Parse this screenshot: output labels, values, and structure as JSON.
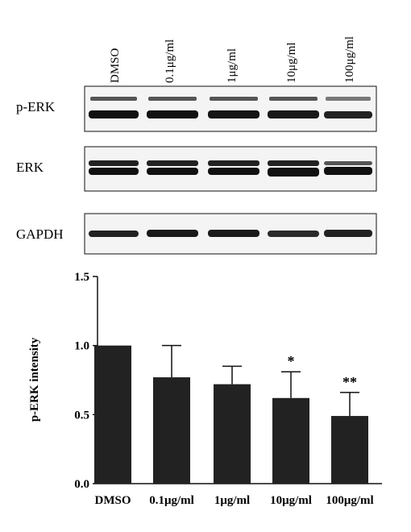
{
  "blot": {
    "lanes": [
      "DMSO",
      "0.1μg/ml",
      "1μg/ml",
      "10μg/ml",
      "100μg/ml"
    ],
    "panels": [
      {
        "label": "p-ERK"
      },
      {
        "label": "ERK"
      },
      {
        "label": "GAPDH"
      }
    ]
  },
  "chart_data": {
    "type": "bar",
    "categories": [
      "DMSO",
      "0.1μg/ml",
      "1μg/ml",
      "10μg/ml",
      "100μg/ml"
    ],
    "values": [
      1.0,
      0.77,
      0.72,
      0.62,
      0.49
    ],
    "error": [
      0.0,
      0.23,
      0.13,
      0.19,
      0.17
    ],
    "significance": [
      "",
      "",
      "",
      "*",
      "**"
    ],
    "ylabel": "p-ERK intensity",
    "xlabel": "",
    "ylim": [
      0,
      1.5
    ],
    "yticks": [
      "0.0",
      "0.5",
      "1.0",
      "1.5"
    ],
    "bar_color": "#222222",
    "grid": false
  }
}
